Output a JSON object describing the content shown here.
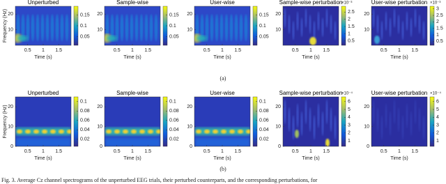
{
  "figure": {
    "rows": [
      {
        "label": "(a)",
        "ylabel": "Frequency (Hz)",
        "xlabel": "Time (s)",
        "xlim": [
          0.1,
          1.9
        ],
        "xticks": [
          0.5,
          1,
          1.5
        ],
        "ylim": [
          0,
          25
        ],
        "yticks": [
          20,
          10
        ],
        "panels": [
          {
            "title": "Unperturbed",
            "clim": [
              0.01,
              0.19
            ],
            "cticks": [
              0.15,
              0.1,
              0.05
            ]
          },
          {
            "title": "Sample-wise",
            "clim": [
              0.01,
              0.19
            ],
            "cticks": [
              0.15,
              0.1,
              0.05
            ]
          },
          {
            "title": "User-wise",
            "clim": [
              0.01,
              0.19
            ],
            "cticks": [
              0.15,
              0.1,
              0.05
            ]
          },
          {
            "title": "Sample-wise perturbation",
            "exponent": "×10⁻³",
            "clim": [
              0.2,
              2.9
            ],
            "cticks": [
              2.5,
              2,
              1.5,
              1,
              0.5
            ]
          },
          {
            "title": "User-wise perturbation",
            "exponent": "×10⁻³",
            "clim": [
              0.2,
              3.2
            ],
            "cticks": [
              3,
              2.5,
              2,
              1.5,
              1,
              0.5
            ]
          }
        ]
      },
      {
        "label": "(b)",
        "ylabel": "Frequency (Hz)",
        "xlabel": "Time (s)",
        "xlim": [
          0.1,
          1.9
        ],
        "xticks": [
          0.5,
          1,
          1.5
        ],
        "ylim": [
          0,
          25
        ],
        "yticks": [
          20,
          10,
          0
        ],
        "panels": [
          {
            "title": "Unperturbed",
            "clim": [
              0.005,
              0.11
            ],
            "cticks": [
              0.1,
              0.08,
              0.06,
              0.04,
              0.02
            ]
          },
          {
            "title": "Sample-wise",
            "clim": [
              0.005,
              0.11
            ],
            "cticks": [
              0.1,
              0.08,
              0.06,
              0.04,
              0.02
            ]
          },
          {
            "title": "User-wise",
            "clim": [
              0.005,
              0.11
            ],
            "cticks": [
              0.1,
              0.08,
              0.06,
              0.04,
              0.02
            ]
          },
          {
            "title": "Sample-wise perturbation",
            "exponent": "×10⁻⁴",
            "clim": [
              0.3,
              6.6
            ],
            "cticks": [
              6,
              5,
              4,
              3,
              2,
              1
            ]
          },
          {
            "title": "User-wise perturbation",
            "exponent": "×10⁻⁴",
            "clim": [
              0.3,
              6.6
            ],
            "cticks": [
              6,
              5,
              4,
              3,
              2,
              1
            ]
          }
        ]
      }
    ],
    "caption": "Fig. 3.   Average Cz channel spectrograms of the unperturbed EEG trials, their perturbed counterparts, and the corresponding perturbations, for"
  }
}
